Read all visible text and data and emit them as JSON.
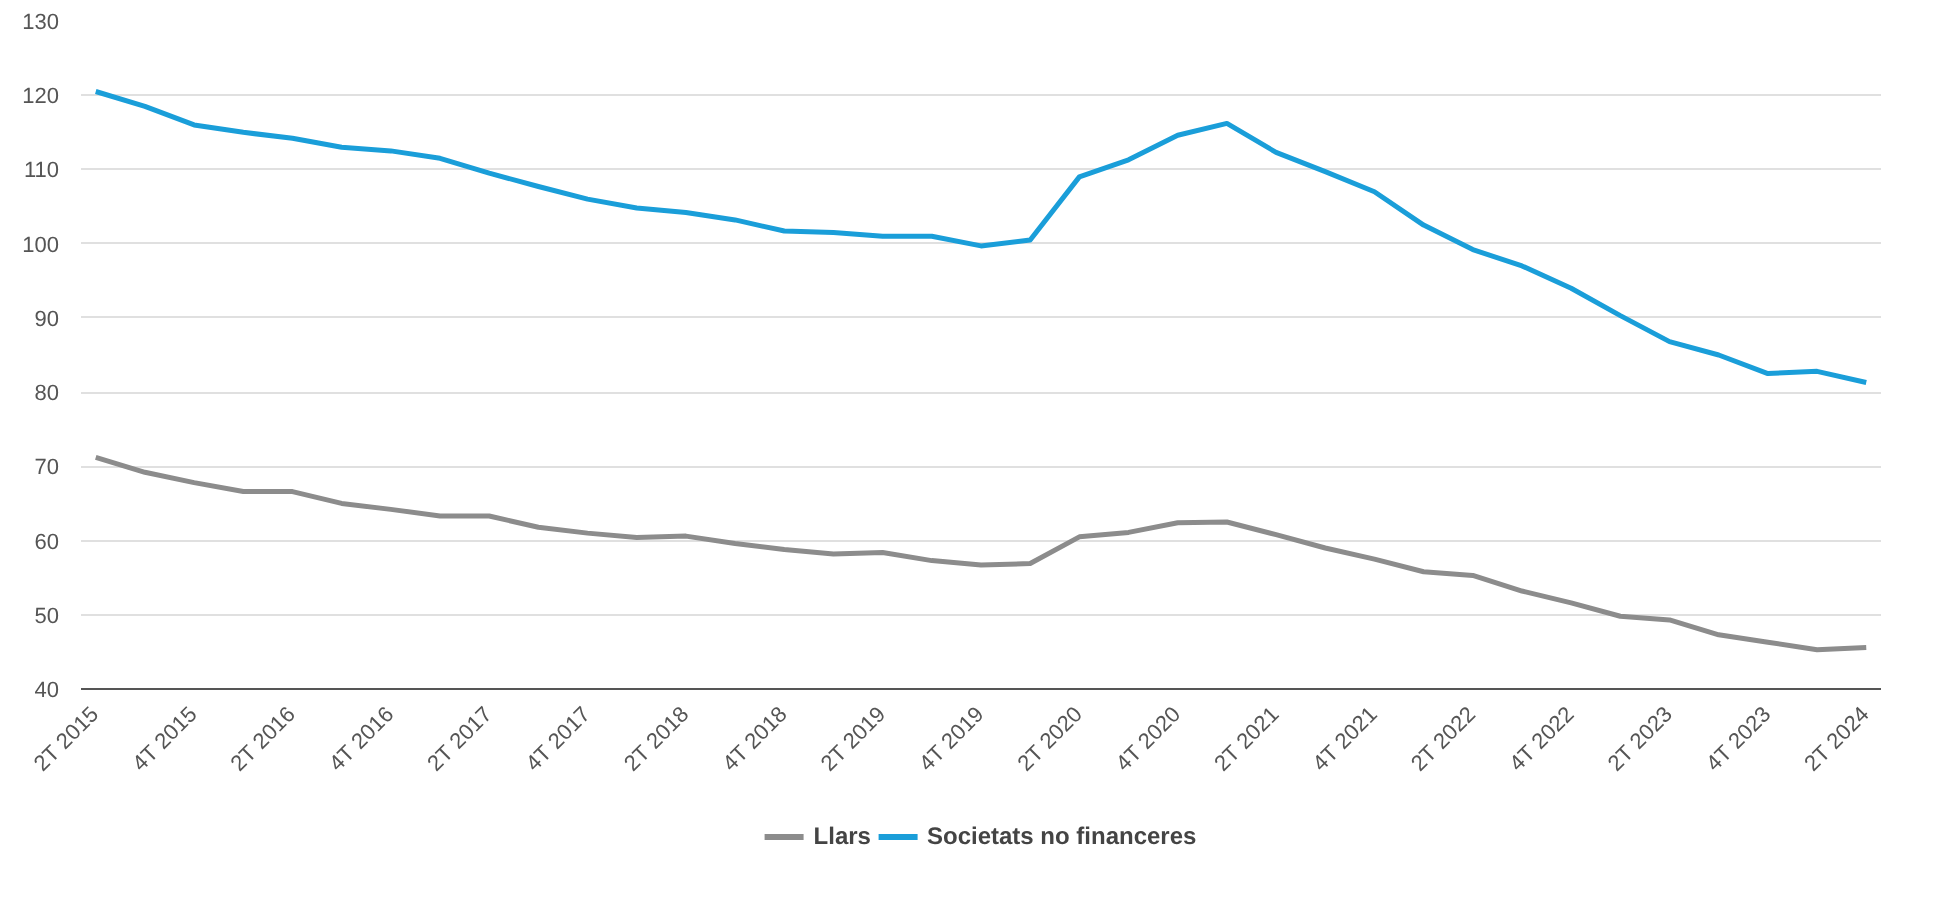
{
  "chart_data": {
    "type": "line",
    "categories": [
      "2T 2015",
      null,
      "4T 2015",
      null,
      "2T 2016",
      null,
      "4T 2016",
      null,
      "2T 2017",
      null,
      "4T 2017",
      null,
      "2T 2018",
      null,
      "4T 2018",
      null,
      "2T 2019",
      null,
      "4T 2019",
      null,
      "2T 2020",
      null,
      "4T 2020",
      null,
      "2T 2021",
      null,
      "4T 2021",
      null,
      "2T 2022",
      null,
      "4T 2022",
      null,
      "2T 2023",
      null,
      "4T 2023",
      null,
      "2T 2024"
    ],
    "series": [
      {
        "name": "Llars",
        "color": "#8c8c8c",
        "values": [
          71.2,
          69.2,
          67.8,
          66.6,
          66.6,
          65,
          64.2,
          63.3,
          63.3,
          61.8,
          61,
          60.4,
          60.6,
          59.6,
          58.8,
          58.2,
          58.4,
          57.3,
          56.7,
          56.9,
          60.5,
          61.1,
          62.4,
          62.5,
          60.8,
          59,
          57.5,
          55.8,
          55.3,
          53.2,
          51.6,
          49.8,
          49.3,
          47.3,
          46.3,
          45.3,
          45.6
        ]
      },
      {
        "name": "Societats no financeres",
        "color": "#1a9ed9",
        "values": [
          120.5,
          118.5,
          116,
          115,
          114.2,
          113,
          112.5,
          111.5,
          109.5,
          107.7,
          106,
          104.8,
          104.2,
          103.2,
          101.7,
          101.5,
          101,
          101,
          99.7,
          100.5,
          109,
          111.3,
          114.6,
          116.2,
          112.3,
          109.7,
          107,
          102.5,
          99.2,
          97,
          94,
          90.3,
          86.8,
          85,
          82.5,
          82.8,
          81.3
        ]
      }
    ],
    "ylim": [
      40,
      130
    ],
    "yticks": [
      40,
      50,
      60,
      70,
      80,
      90,
      100,
      110,
      120,
      130
    ],
    "grid": "y",
    "legend": "bottom",
    "marker": "none",
    "line_style": "solid"
  }
}
